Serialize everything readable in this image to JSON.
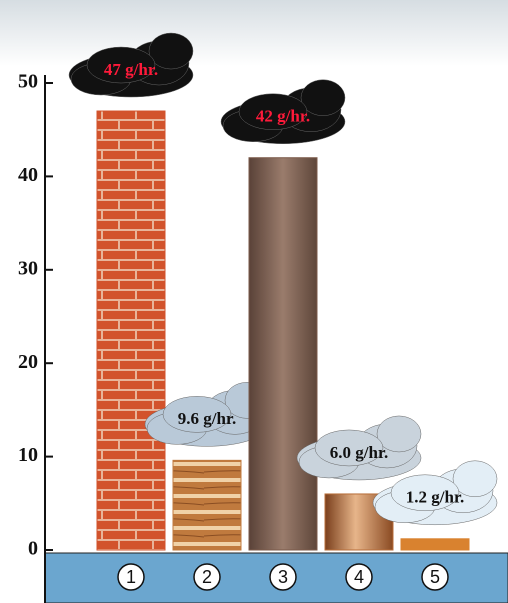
{
  "chart_data": {
    "type": "bar",
    "categories": [
      "1",
      "2",
      "3",
      "4",
      "5"
    ],
    "values": [
      47,
      9.6,
      42,
      6.0,
      1.2
    ],
    "value_labels": [
      "47 g/hr.",
      "9.6 g/hr.",
      "42 g/hr.",
      "6.0 g/hr.",
      "1.2 g/hr."
    ],
    "colors": [
      "#d2532c",
      "#c07a3e",
      "#7b5a4a",
      "#b86d38",
      "#d9822f"
    ],
    "label_colors": [
      "#ff1a3a",
      "#111111",
      "#ff1a3a",
      "#111111",
      "#111111"
    ],
    "cloud_colors": [
      "#111111",
      "#b9c9d8",
      "#111111",
      "#c9d3dc",
      "#e3eef6"
    ],
    "ylim": [
      0,
      50
    ],
    "yticks": [
      0,
      10,
      20,
      30,
      40,
      50
    ]
  }
}
